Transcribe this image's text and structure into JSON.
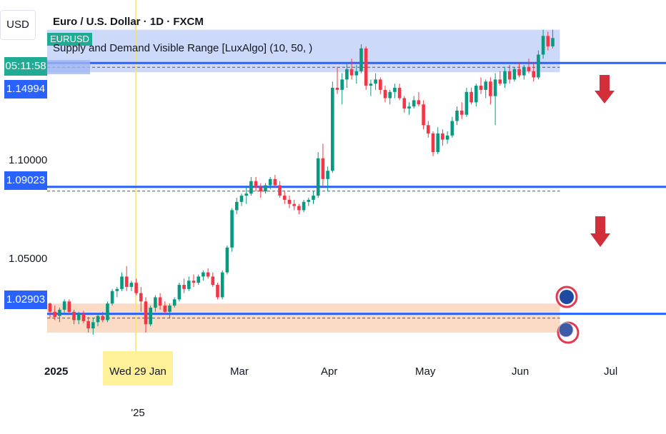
{
  "header": {
    "currency": "USD",
    "title": "Euro / U.S. Dollar · 1D · FXCM",
    "symbol_tag": "EURUSD",
    "indicator": "Supply and Demand Visible Range [LuxAlgo] (10, 50, )"
  },
  "price_scale": {
    "countdown": "05:11:58",
    "price_badges": [
      "1.14994",
      "1.09023",
      "1.02903"
    ],
    "ticks": [
      "1.10000",
      "1.05000"
    ]
  },
  "time_axis": {
    "labels": [
      "2025",
      "Mar",
      "Apr",
      "May",
      "Jun",
      "Jul"
    ],
    "crosshair_label": "Wed 29 Jan '25"
  },
  "colors": {
    "up": "#089981",
    "down": "#f23645",
    "supply_zone": "#b2c4f5",
    "demand_zone": "#f9c6a8",
    "level_line": "#2962ff",
    "countdown_bg": "#22ab94",
    "crosshair": "#f5e663",
    "arrow": "#d32f3a"
  },
  "chart_data": {
    "type": "candlestick",
    "title": "Euro / U.S. Dollar · 1D · FXCM",
    "series": [
      {
        "name": "EURUSD",
        "values": [
          [
            1.034,
            1.0345,
            1.027,
            1.03
          ],
          [
            1.03,
            1.033,
            1.026,
            1.0275
          ],
          [
            1.028,
            1.032,
            1.025,
            1.031
          ],
          [
            1.031,
            1.036,
            1.029,
            1.035
          ],
          [
            1.035,
            1.036,
            1.029,
            1.03
          ],
          [
            1.03,
            1.031,
            1.024,
            1.026
          ],
          [
            1.026,
            1.03,
            1.024,
            1.029
          ],
          [
            1.029,
            1.0305,
            1.0245,
            1.0255
          ],
          [
            1.0255,
            1.0275,
            1.02,
            1.022
          ],
          [
            1.022,
            1.027,
            1.019,
            1.025
          ],
          [
            1.025,
            1.029,
            1.023,
            1.028
          ],
          [
            1.028,
            1.03,
            1.025,
            1.026
          ],
          [
            1.026,
            1.035,
            1.025,
            1.034
          ],
          [
            1.034,
            1.041,
            1.033,
            1.04
          ],
          [
            1.04,
            1.042,
            1.037,
            1.041
          ],
          [
            1.041,
            1.049,
            1.04,
            1.047
          ],
          [
            1.047,
            1.052,
            1.04,
            1.042
          ],
          [
            1.042,
            1.045,
            1.04,
            1.044
          ],
          [
            1.044,
            1.046,
            1.038,
            1.039
          ],
          [
            1.039,
            1.042,
            1.03,
            1.035
          ],
          [
            1.035,
            1.037,
            1.02,
            1.024
          ],
          [
            1.024,
            1.033,
            1.023,
            1.032
          ],
          [
            1.032,
            1.038,
            1.03,
            1.037
          ],
          [
            1.037,
            1.039,
            1.031,
            1.033
          ],
          [
            1.033,
            1.035,
            1.029,
            1.03
          ],
          [
            1.03,
            1.034,
            1.027,
            1.033
          ],
          [
            1.033,
            1.037,
            1.032,
            1.036
          ],
          [
            1.036,
            1.044,
            1.035,
            1.043
          ],
          [
            1.043,
            1.046,
            1.039,
            1.041
          ],
          [
            1.041,
            1.047,
            1.04,
            1.045
          ],
          [
            1.045,
            1.048,
            1.042,
            1.044
          ],
          [
            1.044,
            1.048,
            1.043,
            1.047
          ],
          [
            1.047,
            1.05,
            1.045,
            1.049
          ],
          [
            1.049,
            1.051,
            1.046,
            1.047
          ],
          [
            1.047,
            1.049,
            1.042,
            1.043
          ],
          [
            1.043,
            1.044,
            1.036,
            1.037
          ],
          [
            1.037,
            1.05,
            1.036,
            1.049
          ],
          [
            1.049,
            1.062,
            1.048,
            1.061
          ],
          [
            1.061,
            1.08,
            1.059,
            1.079
          ],
          [
            1.079,
            1.085,
            1.077,
            1.083
          ],
          [
            1.083,
            1.087,
            1.081,
            1.086
          ],
          [
            1.086,
            1.09,
            1.082,
            1.087
          ],
          [
            1.087,
            1.095,
            1.086,
            1.093
          ],
          [
            1.093,
            1.095,
            1.088,
            1.09
          ],
          [
            1.09,
            1.092,
            1.085,
            1.088
          ],
          [
            1.088,
            1.092,
            1.087,
            1.091
          ],
          [
            1.091,
            1.095,
            1.089,
            1.094
          ],
          [
            1.094,
            1.096,
            1.09,
            1.091
          ],
          [
            1.091,
            1.093,
            1.085,
            1.086
          ],
          [
            1.086,
            1.088,
            1.082,
            1.084
          ],
          [
            1.084,
            1.086,
            1.08,
            1.082
          ],
          [
            1.082,
            1.084,
            1.079,
            1.081
          ],
          [
            1.081,
            1.082,
            1.077,
            1.079
          ],
          [
            1.079,
            1.084,
            1.078,
            1.083
          ],
          [
            1.083,
            1.085,
            1.081,
            1.084
          ],
          [
            1.084,
            1.088,
            1.082,
            1.086
          ],
          [
            1.086,
            1.107,
            1.085,
            1.104
          ],
          [
            1.104,
            1.111,
            1.09,
            1.094
          ],
          [
            1.094,
            1.1,
            1.088,
            1.098
          ],
          [
            1.098,
            1.141,
            1.097,
            1.138
          ],
          [
            1.138,
            1.148,
            1.135,
            1.137
          ],
          [
            1.137,
            1.145,
            1.13,
            1.142
          ],
          [
            1.142,
            1.15,
            1.138,
            1.147
          ],
          [
            1.147,
            1.152,
            1.142,
            1.144
          ],
          [
            1.144,
            1.149,
            1.14,
            1.146
          ],
          [
            1.146,
            1.159,
            1.145,
            1.157
          ],
          [
            1.157,
            1.158,
            1.137,
            1.139
          ],
          [
            1.139,
            1.142,
            1.134,
            1.14
          ],
          [
            1.14,
            1.145,
            1.137,
            1.142
          ],
          [
            1.142,
            1.143,
            1.135,
            1.137
          ],
          [
            1.137,
            1.139,
            1.131,
            1.133
          ],
          [
            1.133,
            1.137,
            1.13,
            1.136
          ],
          [
            1.136,
            1.14,
            1.133,
            1.138
          ],
          [
            1.138,
            1.14,
            1.132,
            1.133
          ],
          [
            1.133,
            1.134,
            1.126,
            1.128
          ],
          [
            1.128,
            1.131,
            1.125,
            1.129
          ],
          [
            1.129,
            1.134,
            1.128,
            1.132
          ],
          [
            1.132,
            1.136,
            1.129,
            1.13
          ],
          [
            1.13,
            1.132,
            1.118,
            1.12
          ],
          [
            1.12,
            1.122,
            1.114,
            1.116
          ],
          [
            1.116,
            1.117,
            1.105,
            1.107
          ],
          [
            1.107,
            1.119,
            1.106,
            1.116
          ],
          [
            1.116,
            1.118,
            1.11,
            1.113
          ],
          [
            1.113,
            1.117,
            1.111,
            1.115
          ],
          [
            1.115,
            1.124,
            1.114,
            1.122
          ],
          [
            1.122,
            1.129,
            1.12,
            1.127
          ],
          [
            1.127,
            1.131,
            1.123,
            1.125
          ],
          [
            1.125,
            1.138,
            1.124,
            1.136
          ],
          [
            1.136,
            1.138,
            1.13,
            1.131
          ],
          [
            1.131,
            1.14,
            1.129,
            1.139
          ],
          [
            1.139,
            1.143,
            1.135,
            1.137
          ],
          [
            1.137,
            1.142,
            1.133,
            1.141
          ],
          [
            1.141,
            1.143,
            1.13,
            1.134
          ],
          [
            1.134,
            1.145,
            1.12,
            1.142
          ],
          [
            1.142,
            1.146,
            1.139,
            1.14
          ],
          [
            1.14,
            1.148,
            1.138,
            1.146
          ],
          [
            1.146,
            1.149,
            1.14,
            1.142
          ],
          [
            1.142,
            1.148,
            1.141,
            1.147
          ],
          [
            1.147,
            1.15,
            1.143,
            1.144
          ],
          [
            1.144,
            1.149,
            1.142,
            1.148
          ],
          [
            1.148,
            1.152,
            1.145,
            1.146
          ],
          [
            1.146,
            1.15,
            1.141,
            1.143
          ],
          [
            1.143,
            1.156,
            1.142,
            1.154
          ],
          [
            1.154,
            1.166,
            1.152,
            1.163
          ],
          [
            1.163,
            1.165,
            1.156,
            1.158
          ],
          [
            1.158,
            1.166,
            1.157,
            1.162
          ]
        ]
      }
    ],
    "value_order": [
      "open",
      "high",
      "low",
      "close"
    ],
    "y_ticks": [
      1.05,
      1.1
    ],
    "ylim": [
      1.0,
      1.17
    ],
    "levels": [
      1.14994,
      1.09023,
      1.02903
    ],
    "supply_zone": [
      1.1455,
      1.166
    ],
    "demand_zone": [
      1.02,
      1.034
    ],
    "x_labels": [
      "2025",
      "Mar",
      "Apr",
      "May",
      "Jun",
      "Jul"
    ],
    "grid": false,
    "legend": "none"
  }
}
